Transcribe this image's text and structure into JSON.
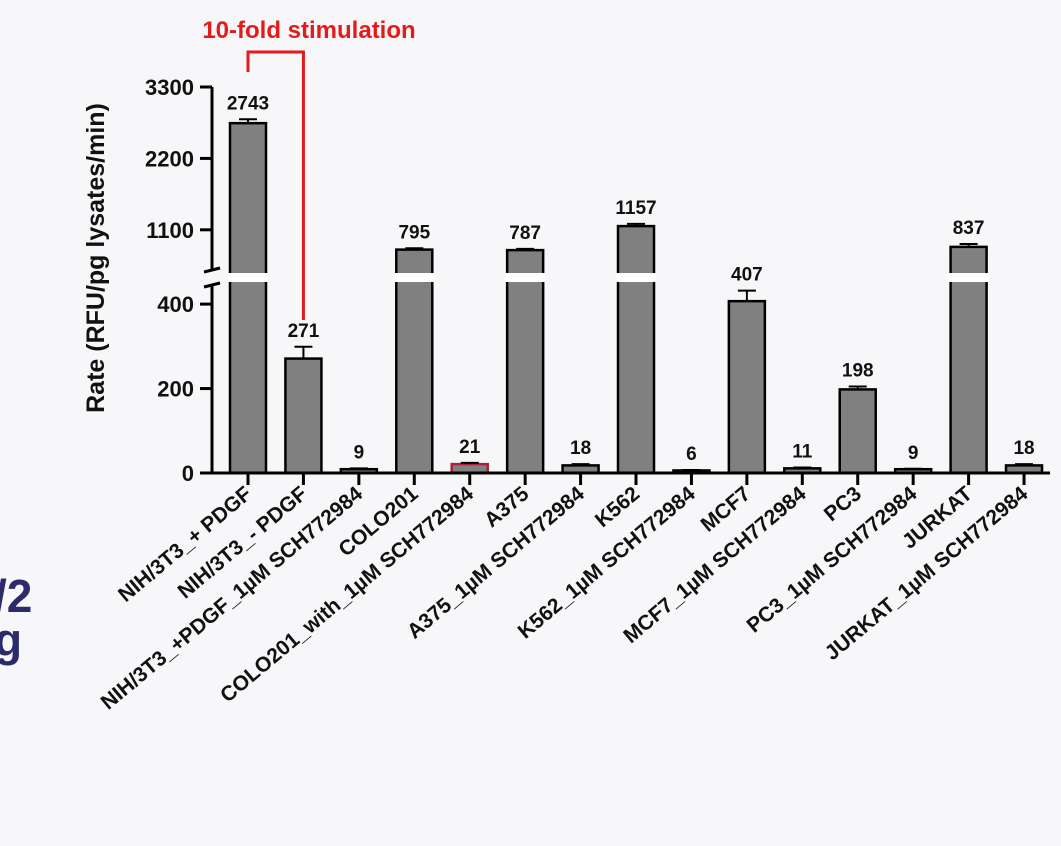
{
  "background_color": "#f7f7f9",
  "side_fragment": {
    "line1": "/2",
    "line2": "g",
    "color": "#2b2a6b"
  },
  "chart_data": {
    "type": "bar",
    "title": "",
    "ylabel": "Rate (RFU/pg lysates/min)",
    "xlabel": "",
    "categories": [
      "NIH/3T3_+ PDGF",
      "NIH/3T3_- PDGF",
      "NIH/3T3_+PDGF_1µM SCH772984",
      "COLO201",
      "COLO201_with_1µM SCH772984",
      "A375",
      "A375_1µM SCH772984",
      "K562",
      "K562_1µM SCH772984",
      "MCF7",
      "MCF7_1µM SCH772984",
      "PC3",
      "PC3_1µM SCH772984",
      "JURKAT",
      "JURKAT_1µM SCH772984"
    ],
    "values": [
      2743,
      271,
      9,
      795,
      21,
      787,
      18,
      1157,
      6,
      407,
      11,
      198,
      9,
      837,
      18
    ],
    "value_labels": [
      "2743",
      "271",
      "9",
      "795",
      "21",
      "787",
      "18",
      "1157",
      "6",
      "407",
      "11",
      "198",
      "9",
      "837",
      "18"
    ],
    "errors": [
      60,
      28,
      2,
      20,
      3,
      20,
      3,
      35,
      1,
      25,
      2,
      7,
      1,
      45,
      3
    ],
    "y_axis_broken": true,
    "y_segment_lower": [
      0,
      450
    ],
    "y_segment_upper": [
      450,
      3300
    ],
    "y_ticks": [
      0,
      200,
      400,
      1100,
      2200,
      3300
    ],
    "y_tick_labels": [
      "0",
      "200",
      "400",
      "1100",
      "2200",
      "3300"
    ],
    "annotation": {
      "text": "10-fold stimulation",
      "from_category": 0,
      "to_category": 1,
      "color": "#e31b1b"
    },
    "bar_color": "#808080",
    "bar_edge_color": "#000000",
    "highlight_bar_edge": {
      "index": 4,
      "color": "#b0203a"
    },
    "grid": false,
    "legend": "none"
  }
}
